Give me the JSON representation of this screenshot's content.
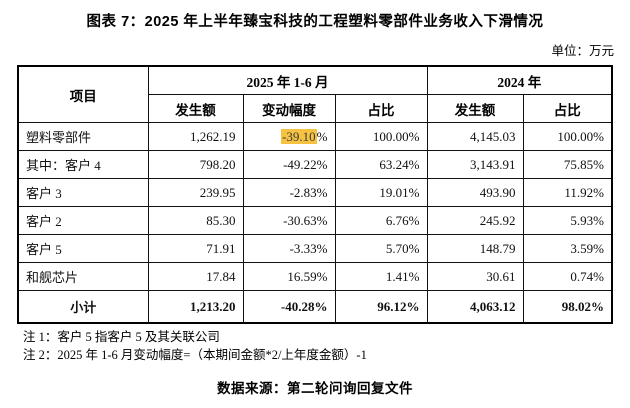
{
  "page": {
    "title": "图表 7：2025 年上半年臻宝科技的工程塑料零部件业务收入下滑情况",
    "unit_label": "单位：万元",
    "source": "数据来源：第二轮问询回复文件"
  },
  "colors": {
    "highlight": "#F5C242",
    "border": "#000000",
    "text": "#111111"
  },
  "table": {
    "header": {
      "item": "项目",
      "group_2025": "2025 年 1-6 月",
      "group_2024": "2024 年",
      "sub": [
        "发生额",
        "变动幅度",
        "占比",
        "发生额",
        "占比"
      ]
    },
    "rows": [
      {
        "item": "塑料零部件",
        "amount_h1": "1,262.19",
        "change": "-39.10",
        "change_suffix": "%",
        "change_highlight": true,
        "share_h1": "100.00%",
        "amount_fy": "4,145.03",
        "share_fy": "100.00%",
        "bold": false
      },
      {
        "item": "其中：客户 4",
        "amount_h1": "798.20",
        "change": "-49.22%",
        "change_suffix": "",
        "change_highlight": false,
        "share_h1": "63.24%",
        "amount_fy": "3,143.91",
        "share_fy": "75.85%",
        "bold": false
      },
      {
        "item": "客户 3",
        "amount_h1": "239.95",
        "change": "-2.83%",
        "change_suffix": "",
        "change_highlight": false,
        "share_h1": "19.01%",
        "amount_fy": "493.90",
        "share_fy": "11.92%",
        "bold": false
      },
      {
        "item": "客户 2",
        "amount_h1": "85.30",
        "change": "-30.63%",
        "change_suffix": "",
        "change_highlight": false,
        "share_h1": "6.76%",
        "amount_fy": "245.92",
        "share_fy": "5.93%",
        "bold": false
      },
      {
        "item": "客户 5",
        "amount_h1": "71.91",
        "change": "-3.33%",
        "change_suffix": "",
        "change_highlight": false,
        "share_h1": "5.70%",
        "amount_fy": "148.79",
        "share_fy": "3.59%",
        "bold": false
      },
      {
        "item": "和舰芯片",
        "amount_h1": "17.84",
        "change": "16.59%",
        "change_suffix": "",
        "change_highlight": false,
        "share_h1": "1.41%",
        "amount_fy": "30.61",
        "share_fy": "0.74%",
        "bold": false
      },
      {
        "item": "小计",
        "amount_h1": "1,213.20",
        "change": "-40.28%",
        "change_suffix": "",
        "change_highlight": false,
        "share_h1": "96.12%",
        "amount_fy": "4,063.12",
        "share_fy": "98.02%",
        "bold": true
      }
    ]
  },
  "notes": [
    "注 1：客户 5 指客户 5 及其关联公司",
    "注 2：2025 年 1-6 月变动幅度=（本期间金额*2/上年度金额）-1"
  ]
}
